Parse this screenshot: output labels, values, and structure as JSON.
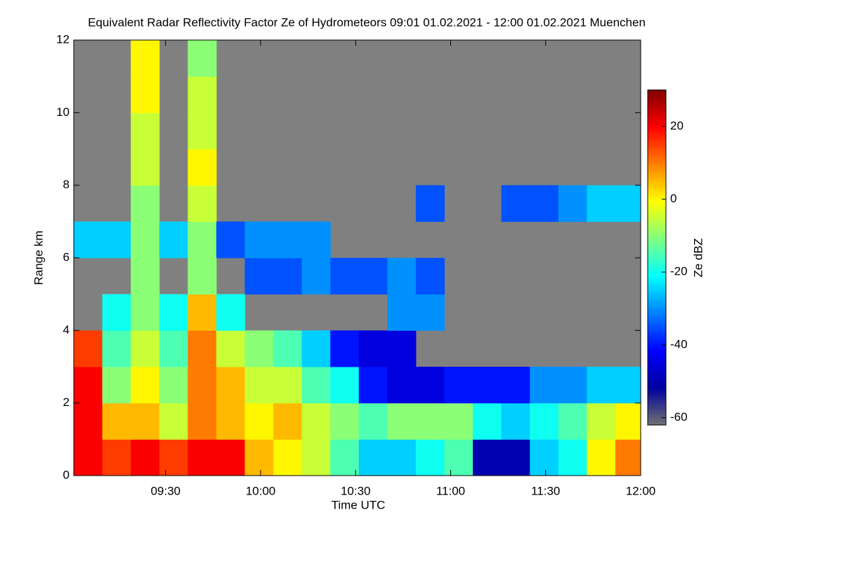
{
  "chart_data": {
    "type": "heatmap",
    "title": "Equivalent Radar Reflectivity Factor Ze of Hydrometeors   09:01 01.02.2021 - 12:00 01.02.2021 Muenchen",
    "x_label": "Time UTC",
    "y_label": "Range km",
    "colorbar_label": "Ze dBZ",
    "xlim": [
      541,
      720
    ],
    "xticks": [
      {
        "value": 570,
        "label": "09:30"
      },
      {
        "value": 600,
        "label": "10:00"
      },
      {
        "value": 630,
        "label": "10:30"
      },
      {
        "value": 660,
        "label": "11:00"
      },
      {
        "value": 690,
        "label": "11:30"
      },
      {
        "value": 720,
        "label": "12:00"
      }
    ],
    "ylim": [
      0,
      12
    ],
    "yticks": [
      0,
      2,
      4,
      6,
      8,
      10,
      12
    ],
    "clim": [
      -62,
      30
    ],
    "cticks": [
      20,
      0,
      -20,
      -40,
      -60
    ],
    "colormap": [
      "#707070",
      "#0000a0",
      "#0000ff",
      "#0080ff",
      "#00ffff",
      "#80ff80",
      "#ffff00",
      "#ff8000",
      "#ff0000",
      "#800000"
    ],
    "missing_color": "#808080",
    "xbins": [
      541,
      550,
      559,
      568,
      577,
      586,
      595,
      604,
      613,
      622,
      631,
      640,
      649,
      658,
      667,
      676,
      685,
      694,
      703,
      712,
      721
    ],
    "ybins": [
      0,
      1,
      2,
      3,
      4,
      5,
      6,
      7,
      8,
      9,
      10,
      11,
      12
    ],
    "z": [
      [
        20,
        15,
        20,
        15,
        20,
        20,
        5,
        0,
        -5,
        -15,
        -25,
        -25,
        -20,
        -15,
        -50,
        -50,
        -25,
        -20,
        0,
        10
      ],
      [
        20,
        5,
        5,
        -5,
        10,
        5,
        0,
        5,
        -5,
        -10,
        -15,
        -10,
        -10,
        -10,
        -20,
        -25,
        -20,
        -15,
        -5,
        0
      ],
      [
        20,
        -10,
        0,
        -10,
        10,
        5,
        -5,
        -5,
        -15,
        -20,
        -40,
        -45,
        -45,
        -40,
        -40,
        -40,
        -30,
        -30,
        -25,
        -25
      ],
      [
        15,
        -15,
        -5,
        -15,
        10,
        -5,
        -10,
        -15,
        -25,
        -40,
        -45,
        -45,
        null,
        null,
        null,
        null,
        null,
        null,
        null,
        null
      ],
      [
        null,
        -20,
        -10,
        -20,
        5,
        -20,
        null,
        null,
        null,
        null,
        null,
        -30,
        -30,
        null,
        null,
        null,
        null,
        null,
        null,
        null
      ],
      [
        null,
        null,
        -10,
        null,
        -10,
        null,
        -35,
        -35,
        -30,
        -35,
        -35,
        -30,
        -35,
        null,
        null,
        null,
        null,
        null,
        null,
        null
      ],
      [
        -25,
        -25,
        -10,
        -25,
        -10,
        -35,
        -30,
        -30,
        -30,
        null,
        null,
        null,
        null,
        null,
        null,
        null,
        null,
        null,
        null,
        null
      ],
      [
        null,
        null,
        -10,
        null,
        -5,
        null,
        null,
        null,
        null,
        null,
        null,
        null,
        -35,
        null,
        null,
        -35,
        -35,
        -30,
        -25,
        -25
      ],
      [
        null,
        null,
        -5,
        null,
        0,
        null,
        null,
        null,
        null,
        null,
        null,
        null,
        null,
        null,
        null,
        null,
        null,
        null,
        null,
        null
      ],
      [
        null,
        null,
        -5,
        null,
        -5,
        null,
        null,
        null,
        null,
        null,
        null,
        null,
        null,
        null,
        null,
        null,
        null,
        null,
        null,
        null
      ],
      [
        null,
        null,
        0,
        null,
        -5,
        null,
        null,
        null,
        null,
        null,
        null,
        null,
        null,
        null,
        null,
        null,
        null,
        null,
        null,
        null
      ],
      [
        null,
        null,
        0,
        null,
        -10,
        null,
        null,
        null,
        null,
        null,
        null,
        null,
        null,
        null,
        null,
        null,
        null,
        null,
        null,
        null
      ]
    ]
  }
}
